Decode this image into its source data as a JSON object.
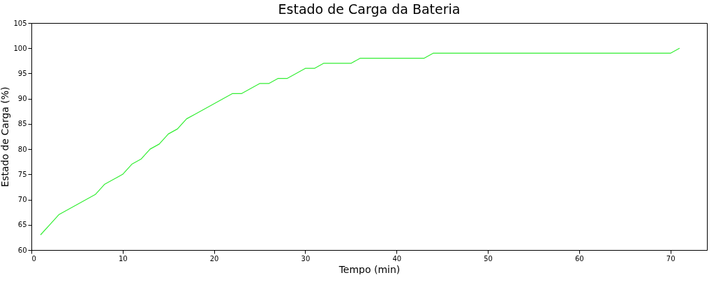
{
  "chart_data": {
    "type": "line",
    "title": "Estado de Carga da Bateria",
    "xlabel": "Tempo (min)",
    "ylabel": "Estado de Carga (%)",
    "x": [
      1,
      2,
      3,
      4,
      5,
      6,
      7,
      8,
      9,
      10,
      11,
      12,
      13,
      14,
      15,
      16,
      17,
      18,
      19,
      20,
      21,
      22,
      23,
      24,
      25,
      26,
      27,
      28,
      29,
      30,
      31,
      32,
      33,
      34,
      35,
      36,
      37,
      38,
      39,
      40,
      41,
      42,
      43,
      44,
      45,
      46,
      47,
      48,
      49,
      50,
      51,
      52,
      53,
      54,
      55,
      56,
      57,
      58,
      59,
      60,
      61,
      62,
      63,
      64,
      65,
      66,
      67,
      68,
      69,
      70,
      71
    ],
    "series": [
      {
        "color": "#33ee33",
        "values": [
          63,
          65,
          67,
          68,
          69,
          70,
          71,
          73,
          74,
          75,
          77,
          78,
          80,
          81,
          83,
          84,
          86,
          87,
          88,
          89,
          90,
          91,
          91,
          92,
          93,
          93,
          94,
          94,
          95,
          96,
          96,
          97,
          97,
          97,
          97,
          98,
          98,
          98,
          98,
          98,
          98,
          98,
          98,
          99,
          99,
          99,
          99,
          99,
          99,
          99,
          99,
          99,
          99,
          99,
          99,
          99,
          99,
          99,
          99,
          99,
          99,
          99,
          99,
          99,
          99,
          99,
          99,
          99,
          99,
          99,
          100
        ]
      }
    ],
    "xlim": [
      0,
      74
    ],
    "xticks": [
      0,
      10,
      20,
      30,
      40,
      50,
      60,
      70
    ],
    "ylim": [
      60,
      105
    ],
    "yticks": [
      60,
      65,
      70,
      75,
      80,
      85,
      90,
      95,
      100,
      105
    ],
    "grid": false,
    "legend": false,
    "marker": "none",
    "line_style": "solid"
  }
}
